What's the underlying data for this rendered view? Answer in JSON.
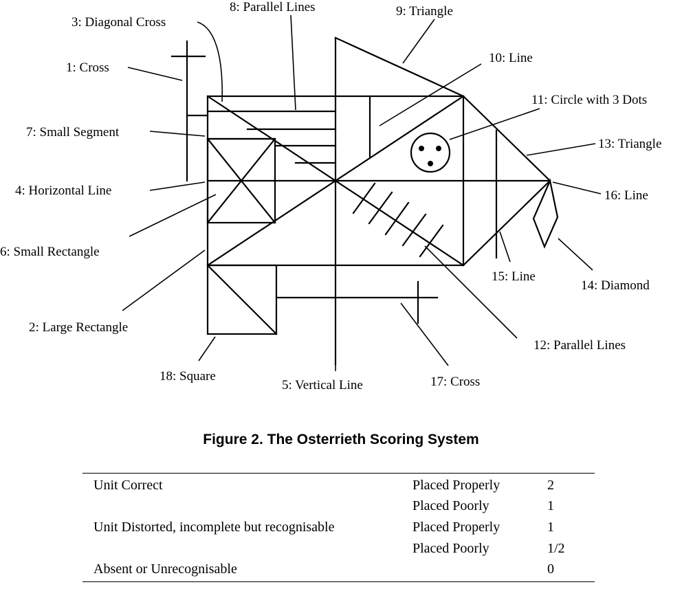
{
  "figure": {
    "labels": {
      "l1": "1: Cross",
      "l2": "2: Large Rectangle",
      "l3": "3: Diagonal Cross",
      "l4": "4: Horizontal Line",
      "l5": "5: Vertical Line",
      "l6": "6: Small Rectangle",
      "l7": "7: Small Segment",
      "l8": "8: Parallel Lines",
      "l9": "9: Triangle",
      "l10": "10: Line",
      "l11": "11: Circle with 3 Dots",
      "l12": "12: Parallel Lines",
      "l13": "13: Triangle",
      "l14": "14: Diamond",
      "l15": "15: Line",
      "l16": "16: Line",
      "l17": "17: Cross",
      "l18": "18: Square"
    },
    "caption": "Figure 2. The Osterrieth Scoring System"
  },
  "scoring_table": {
    "rows": [
      {
        "unit": "Unit Correct",
        "placement": "Placed Properly",
        "score": "2"
      },
      {
        "unit": "",
        "placement": "Placed Poorly",
        "score": "1"
      },
      {
        "unit": "Unit Distorted, incomplete but recognisable",
        "placement": "Placed Properly",
        "score": "1"
      },
      {
        "unit": "",
        "placement": "Placed Poorly",
        "score": "1/2"
      },
      {
        "unit": "Absent or Unrecognisable",
        "placement": "",
        "score": "0"
      }
    ]
  }
}
